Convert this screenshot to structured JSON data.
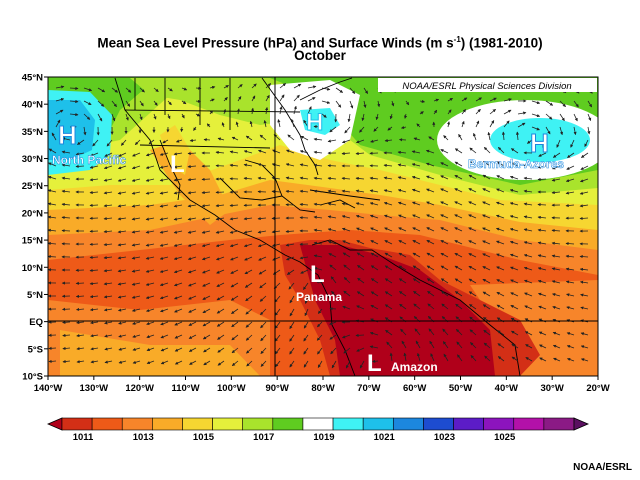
{
  "title": {
    "line1_pre": "Mean Sea Level Pressure (hPa) and Surface Winds (m s",
    "line1_sup": "-1",
    "line1_post": ") (1981-2010)",
    "line2": "October"
  },
  "attribution_box": "NOAA/ESRL Physical Sciences Division",
  "footer_credit": "NOAA/ESRL",
  "axes": {
    "lat_ticks": [
      "45°N",
      "40°N",
      "35°N",
      "30°N",
      "25°N",
      "20°N",
      "15°N",
      "10°N",
      "5°N",
      "EQ",
      "5°S",
      "10°S"
    ],
    "lon_ticks": [
      "140°W",
      "130°W",
      "120°W",
      "110°W",
      "100°W",
      "90°W",
      "80°W",
      "70°W",
      "60°W",
      "50°W",
      "40°W",
      "30°W",
      "20°W"
    ]
  },
  "pressure_labels": [
    {
      "letter": "H",
      "name": "North Pacific",
      "kind": "high"
    },
    {
      "letter": "L",
      "name": "",
      "kind": "low"
    },
    {
      "letter": "H",
      "name": "",
      "kind": "high"
    },
    {
      "letter": "H",
      "name": "Bermuda-Azores",
      "kind": "high"
    },
    {
      "letter": "L",
      "name": "Panama",
      "kind": "low"
    },
    {
      "letter": "L",
      "name": "Amazon",
      "kind": "low"
    }
  ],
  "colorbar": {
    "labels": [
      "1011",
      "1013",
      "1015",
      "1017",
      "1019",
      "1021",
      "1023",
      "1025"
    ],
    "colors": [
      "#b0001a",
      "#d32f16",
      "#ee5a18",
      "#f7852a",
      "#f9ab28",
      "#f6d631",
      "#e5f03b",
      "#a9e32c",
      "#5fcc20",
      "#ffffff",
      "#3ff2f4",
      "#1ec0ea",
      "#1c87de",
      "#1d4cd0",
      "#5c1cc7",
      "#8c14bd",
      "#b311a9",
      "#8b1a85",
      "#5a1060"
    ]
  }
}
